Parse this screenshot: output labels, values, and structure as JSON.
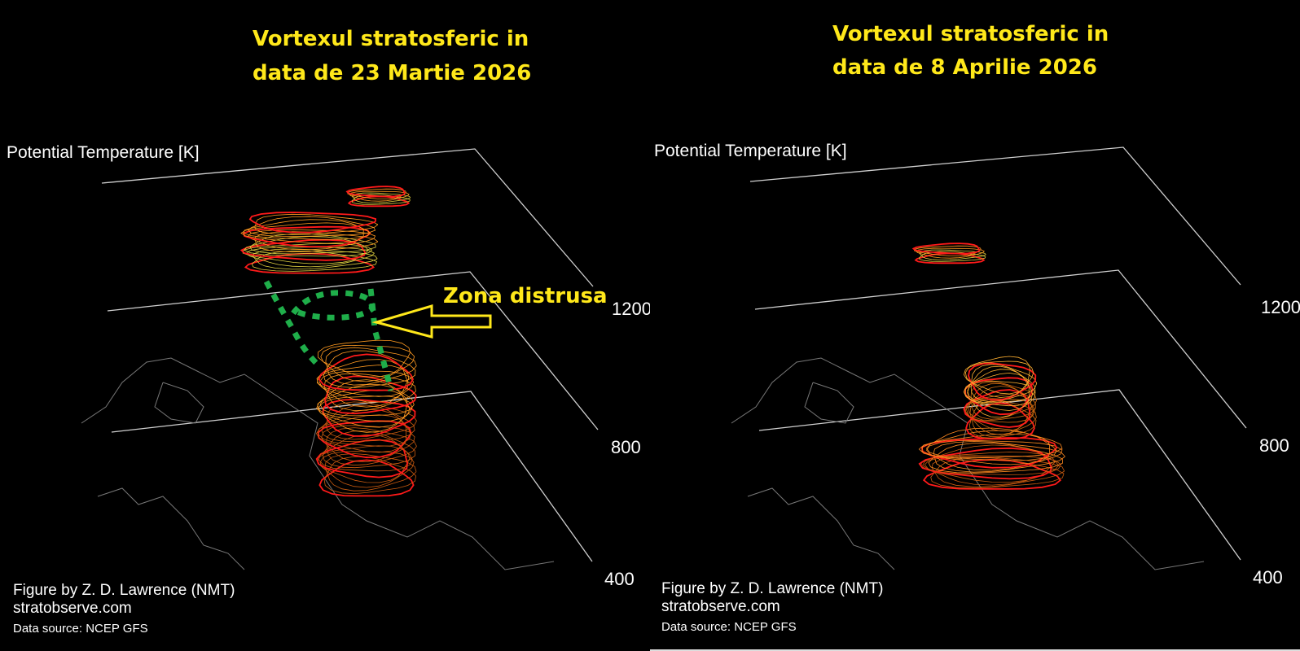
{
  "panels": [
    {
      "title": [
        "Vortexul stratosferic in",
        "data de 23 Martie 2026"
      ],
      "axis_label": "Potential Temperature [K]",
      "levels": [
        "1200",
        "800",
        "400"
      ],
      "credit": [
        "Figure by Z. D. Lawrence (NMT)",
        "stratobserve.com",
        "Data source: NCEP GFS"
      ]
    },
    {
      "title": [
        "Vortexul stratosferic in",
        "data de 8 Aprilie 2026"
      ],
      "axis_label": "Potential Temperature [K]",
      "levels": [
        "1200",
        "800",
        "400"
      ],
      "credit": [
        "Figure by Z. D. Lawrence (NMT)",
        "stratobserve.com",
        "Data source: NCEP GFS"
      ]
    }
  ],
  "annotation": "Zona distrusa"
}
